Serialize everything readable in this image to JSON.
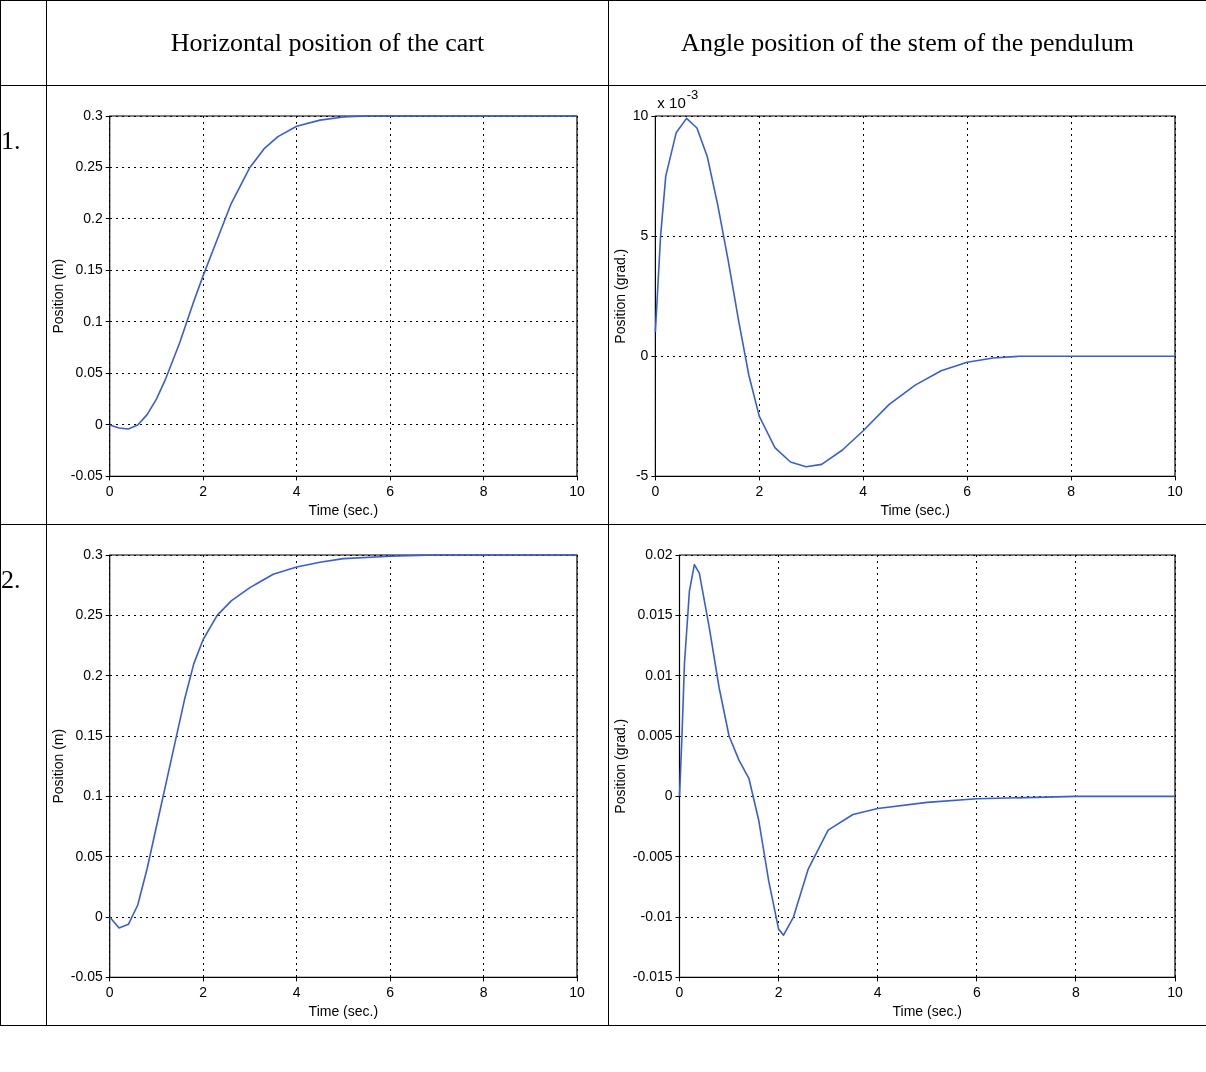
{
  "chart_data": [
    {
      "type": "line",
      "title": "Horizontal position of the cart",
      "annotations": [
        "1."
      ],
      "xlabel": "Time (sec.)",
      "ylabel": "Position (m)",
      "xlim": [
        0,
        10
      ],
      "xticks": [
        0,
        2,
        4,
        6,
        8,
        10
      ],
      "ylim": [
        -0.05,
        0.3
      ],
      "yticks": [
        -0.05,
        0,
        0.05,
        0.1,
        0.15,
        0.2,
        0.25,
        0.3
      ],
      "grid": true,
      "marker": "none",
      "line_style": "solid",
      "color": "#3a5fcd",
      "x": [
        0,
        0.2,
        0.4,
        0.6,
        0.8,
        1,
        1.2,
        1.5,
        1.8,
        2,
        2.3,
        2.6,
        3,
        3.3,
        3.6,
        4,
        4.5,
        5,
        5.5,
        6,
        10
      ],
      "values": [
        0,
        -0.003,
        -0.004,
        0,
        0.01,
        0.025,
        0.045,
        0.08,
        0.12,
        0.145,
        0.18,
        0.215,
        0.25,
        0.268,
        0.28,
        0.29,
        0.296,
        0.299,
        0.3,
        0.3,
        0.3
      ]
    },
    {
      "type": "line",
      "title": "Angle position of the stem of the pendulum",
      "annotations": [
        "x 10$^{-3}$"
      ],
      "xlabel": "Time (sec.)",
      "ylabel": "Position (grad.)",
      "xlim": [
        0,
        10
      ],
      "xticks": [
        0,
        2,
        4,
        6,
        8,
        10
      ],
      "ylim": [
        -5,
        10
      ],
      "yticks": [
        -5,
        0,
        5,
        10
      ],
      "grid": true,
      "marker": "none",
      "line_style": "solid",
      "color": "#3a5fcd",
      "x": [
        0,
        0.05,
        0.1,
        0.2,
        0.4,
        0.6,
        0.8,
        1,
        1.2,
        1.4,
        1.6,
        1.8,
        2,
        2.3,
        2.6,
        2.9,
        3.2,
        3.6,
        4,
        4.5,
        5,
        5.5,
        6,
        6.5,
        7,
        10
      ],
      "values": [
        1,
        3,
        5,
        7.5,
        9.3,
        9.9,
        9.5,
        8.3,
        6.3,
        4,
        1.5,
        -0.8,
        -2.5,
        -3.8,
        -4.4,
        -4.6,
        -4.5,
        -3.9,
        -3.1,
        -2,
        -1.2,
        -0.6,
        -0.25,
        -0.07,
        0,
        0
      ]
    },
    {
      "type": "line",
      "annotations": [
        "2."
      ],
      "xlabel": "Time (sec.)",
      "ylabel": "Position (m)",
      "xlim": [
        0,
        10
      ],
      "xticks": [
        0,
        2,
        4,
        6,
        8,
        10
      ],
      "ylim": [
        -0.05,
        0.3
      ],
      "yticks": [
        -0.05,
        0,
        0.05,
        0.1,
        0.15,
        0.2,
        0.25,
        0.3
      ],
      "grid": true,
      "marker": "none",
      "line_style": "solid",
      "color": "#3a5fcd",
      "x": [
        0,
        0.2,
        0.4,
        0.6,
        0.8,
        1,
        1.2,
        1.4,
        1.6,
        1.8,
        2,
        2.3,
        2.6,
        3,
        3.5,
        4,
        4.5,
        5,
        6,
        7,
        10
      ],
      "values": [
        0,
        -0.009,
        -0.006,
        0.01,
        0.04,
        0.075,
        0.11,
        0.145,
        0.18,
        0.21,
        0.23,
        0.25,
        0.262,
        0.273,
        0.284,
        0.29,
        0.294,
        0.297,
        0.299,
        0.3,
        0.3
      ]
    },
    {
      "type": "line",
      "xlabel": "Time (sec.)",
      "ylabel": "Position (grad.)",
      "xlim": [
        0,
        10
      ],
      "xticks": [
        0,
        2,
        4,
        6,
        8,
        10
      ],
      "ylim": [
        -0.015,
        0.02
      ],
      "yticks": [
        -0.015,
        -0.01,
        -0.005,
        0,
        0.005,
        0.01,
        0.015,
        0.02
      ],
      "grid": true,
      "marker": "none",
      "line_style": "solid",
      "color": "#3a5fcd",
      "x": [
        0,
        0.05,
        0.1,
        0.2,
        0.3,
        0.4,
        0.6,
        0.8,
        1,
        1.2,
        1.4,
        1.6,
        1.8,
        2,
        2.1,
        2.3,
        2.6,
        3,
        3.5,
        4,
        5,
        6,
        8,
        10
      ],
      "values": [
        0,
        0.005,
        0.011,
        0.017,
        0.0192,
        0.0185,
        0.014,
        0.009,
        0.005,
        0.003,
        0.0015,
        -0.002,
        -0.007,
        -0.011,
        -0.0115,
        -0.01,
        -0.006,
        -0.0028,
        -0.0015,
        -0.001,
        -0.0005,
        -0.0002,
        0,
        0
      ]
    }
  ]
}
